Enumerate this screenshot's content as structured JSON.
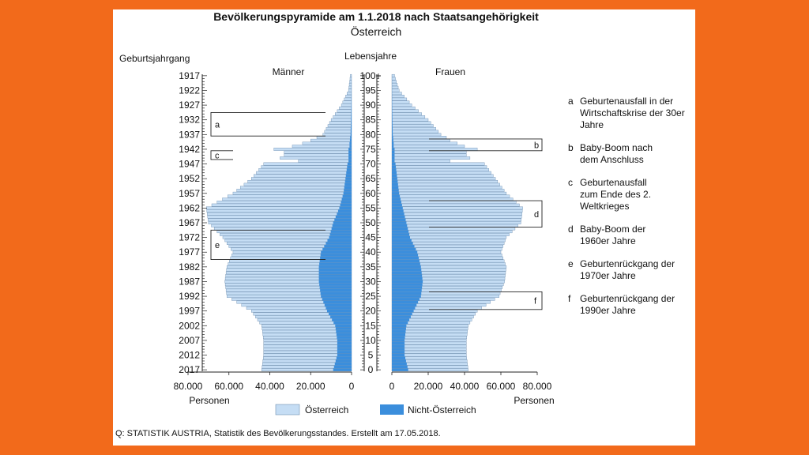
{
  "chart_data": {
    "type": "population-pyramid",
    "title": "Bevölkerungspyramide am 1.1.2018 nach Staatsangehörigkeit",
    "subtitle": "Österreich",
    "left_axis_title": "Geburtsjahrgang",
    "center_axis_title": "Lebensjahre",
    "male_label": "Männer",
    "female_label": "Frauen",
    "x_unit_label": "Personen",
    "x_ticks_left": [
      "80.000",
      "60.000",
      "40.000",
      "20.000",
      "0"
    ],
    "x_ticks_right": [
      "0",
      "20.000",
      "40.000",
      "60.000",
      "80.000"
    ],
    "xlim": [
      0,
      80000
    ],
    "birth_year_ticks": [
      "1917",
      "1922",
      "1927",
      "1932",
      "1937",
      "1942",
      "1947",
      "1952",
      "1957",
      "1962",
      "1967",
      "1972",
      "1977",
      "1982",
      "1987",
      "1992",
      "1997",
      "2002",
      "2007",
      "2012",
      "2017"
    ],
    "age_ticks": [
      "100+",
      "95",
      "90",
      "85",
      "80",
      "75",
      "70",
      "65",
      "60",
      "55",
      "50",
      "45",
      "40",
      "35",
      "30",
      "25",
      "20",
      "15",
      "10",
      "5",
      "0"
    ],
    "legend": [
      {
        "label": "Österreich",
        "color": "#C5DDF4"
      },
      {
        "label": "Nicht-Österreich",
        "color": "#3B8EDC"
      }
    ],
    "age_anchor_values": {
      "ages": [
        0,
        5,
        10,
        15,
        20,
        25,
        30,
        35,
        40,
        45,
        50,
        55,
        60,
        65,
        70,
        71,
        72,
        73,
        74,
        75,
        76,
        77,
        78,
        79,
        80,
        85,
        90,
        95,
        100
      ],
      "male_total": [
        44000,
        43000,
        43000,
        44000,
        49000,
        61000,
        62000,
        61000,
        58000,
        63000,
        70000,
        71000,
        58000,
        49000,
        43000,
        26000,
        35000,
        33000,
        33000,
        38000,
        29000,
        24000,
        20000,
        17000,
        14000,
        10000,
        5000,
        1500,
        600
      ],
      "male_foreign": [
        9000,
        7000,
        7000,
        8000,
        12000,
        15000,
        16000,
        16000,
        15000,
        11000,
        9000,
        6000,
        4000,
        3000,
        2000,
        1500,
        1500,
        1500,
        1500,
        1500,
        1000,
        1000,
        800,
        700,
        500,
        300,
        150,
        50,
        20
      ],
      "female_total": [
        42000,
        41000,
        41000,
        42000,
        47000,
        59000,
        62000,
        63000,
        60000,
        63000,
        71000,
        72000,
        63000,
        57000,
        51000,
        32000,
        43000,
        41000,
        41000,
        47000,
        40000,
        36000,
        32000,
        30000,
        27000,
        20000,
        11000,
        4000,
        1500
      ],
      "female_foreign": [
        9000,
        7000,
        7000,
        8000,
        12000,
        16000,
        17000,
        16000,
        14000,
        10000,
        8000,
        6000,
        4000,
        3000,
        2000,
        1500,
        1500,
        1500,
        1500,
        1500,
        1000,
        1000,
        800,
        700,
        500,
        300,
        150,
        50,
        20
      ]
    },
    "annotations": [
      {
        "letter": "a",
        "side": "male",
        "age_from": 80,
        "age_to": 87,
        "text": "Geburtenausfall in der Wirtschaftskrise der 30er Jahre"
      },
      {
        "letter": "b",
        "side": "female",
        "age_from": 75,
        "age_to": 78,
        "text": "Baby-Boom nach dem Anschluss"
      },
      {
        "letter": "c",
        "side": "male",
        "age_from": 72,
        "age_to": 74,
        "text": "Geburtenausfall zum Ende des 2. Weltkrieges"
      },
      {
        "letter": "d",
        "side": "female",
        "age_from": 49,
        "age_to": 57,
        "text": "Baby-Boom der 1960er Jahre"
      },
      {
        "letter": "e",
        "side": "male",
        "age_from": 38,
        "age_to": 47,
        "text": "Geburtenrückgang der 1970er Jahre"
      },
      {
        "letter": "f",
        "side": "female",
        "age_from": 21,
        "age_to": 26,
        "text": "Geburtenrückgang der 1990er Jahre"
      }
    ]
  },
  "source": "Q: STATISTIK AUSTRIA, Statistik des Bevölkerungsstandes. Erstellt am 17.05.2018."
}
